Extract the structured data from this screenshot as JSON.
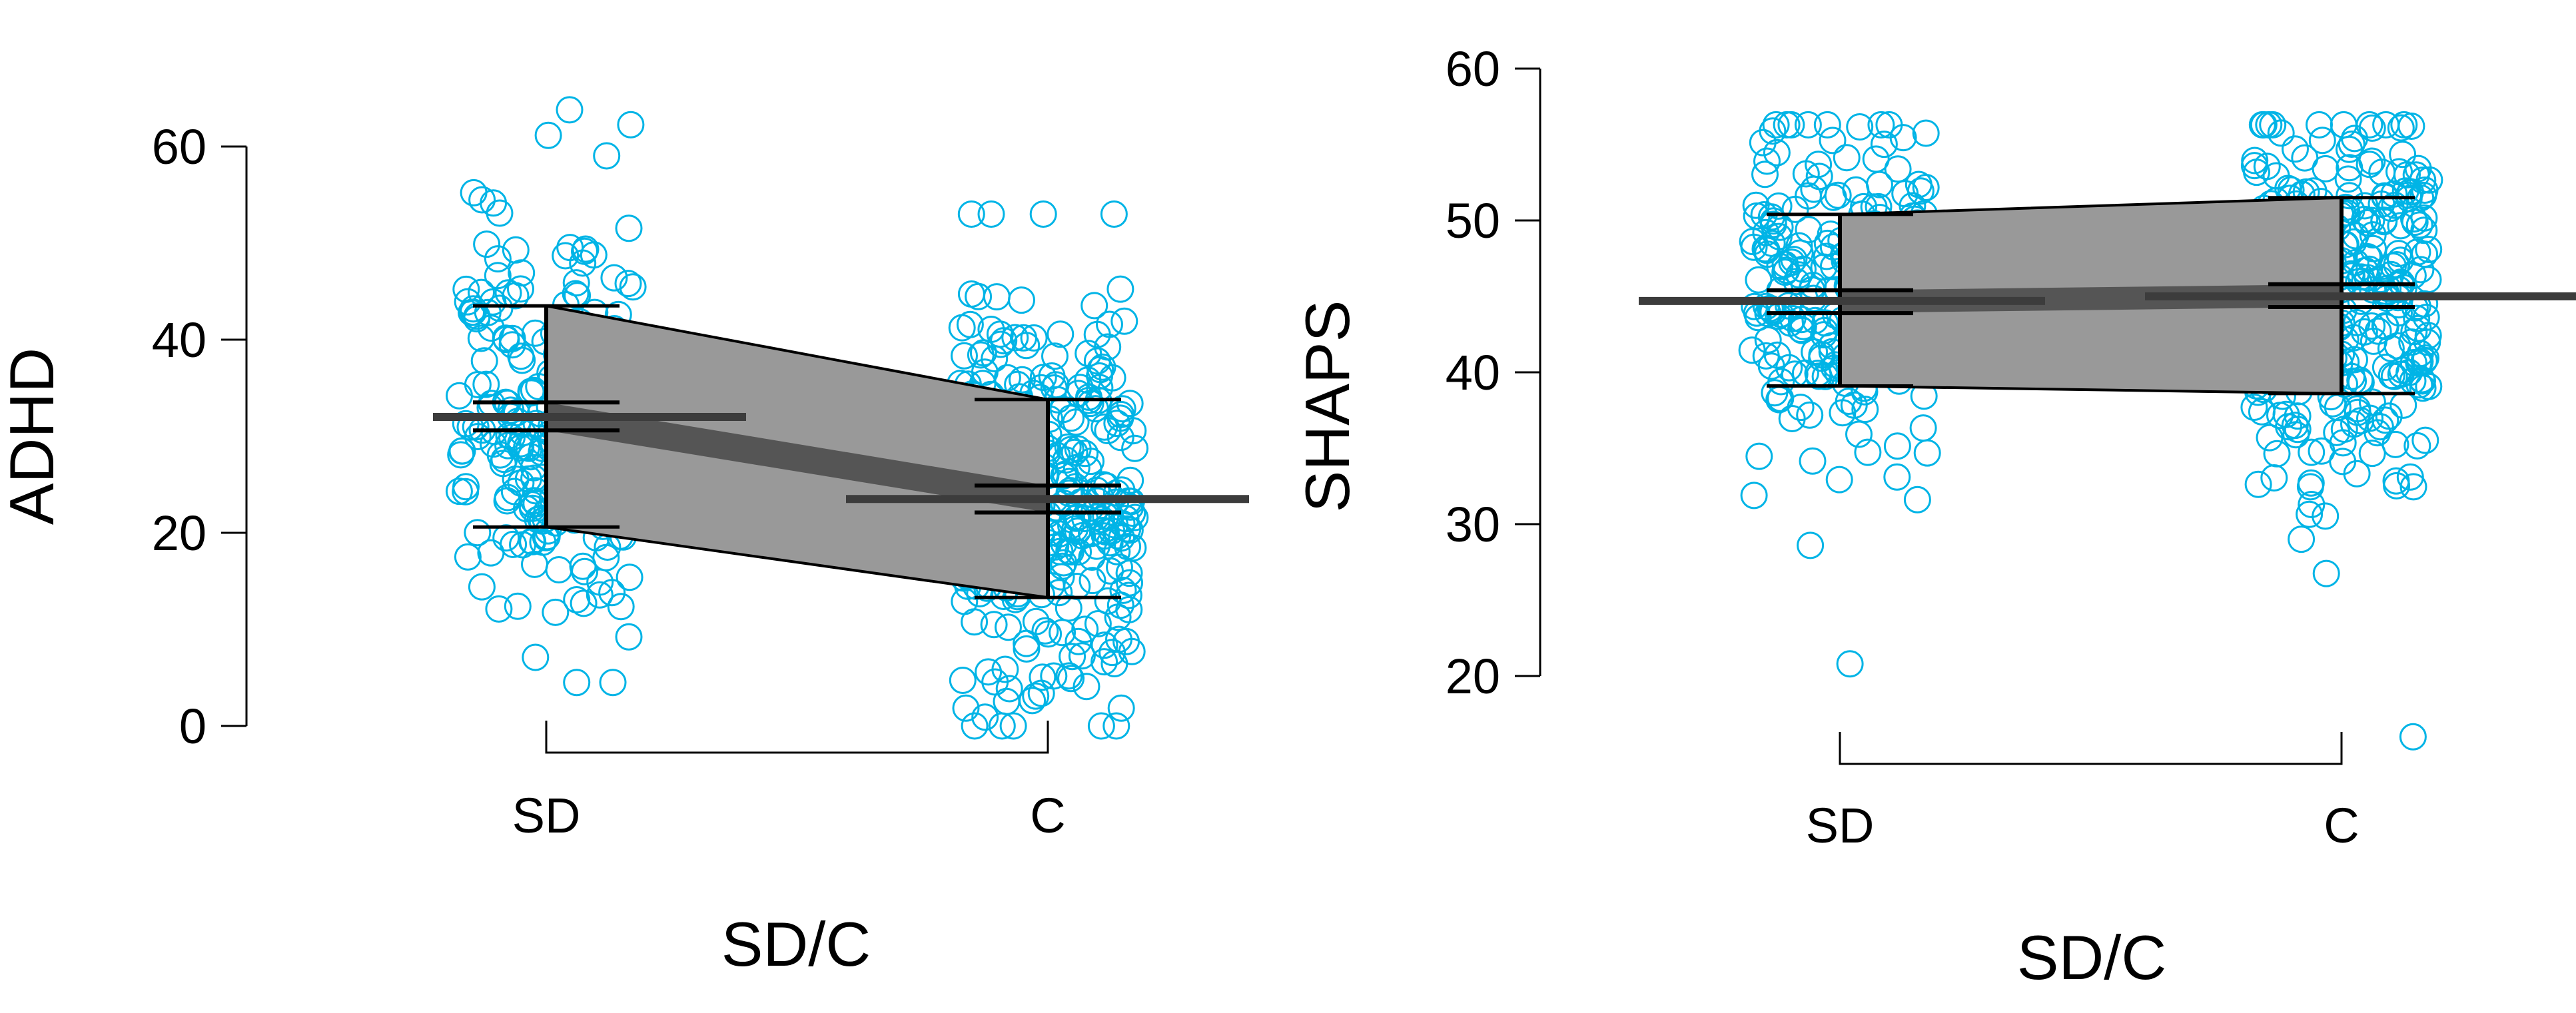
{
  "chart_data": [
    {
      "type": "scatter",
      "subtype": "jittered raincloud with group means and intervals",
      "xlabel": "SD/C",
      "ylabel": "ADHD",
      "categories": [
        "SD",
        "C"
      ],
      "ylim": [
        0,
        60
      ],
      "yticks": [
        0,
        20,
        40,
        60
      ],
      "point_color": "#00b4e6",
      "groups": [
        {
          "name": "SD",
          "mean": 32,
          "ci": [
            30.6,
            33.5
          ],
          "sd_range": [
            20.6,
            43.5
          ],
          "min": 4.5,
          "max": 63.8,
          "n": 230
        },
        {
          "name": "C",
          "mean": 23.5,
          "ci": [
            22.1,
            24.9
          ],
          "sd_range": [
            13.3,
            33.8
          ],
          "min": 0,
          "max": 53,
          "n": 330
        }
      ]
    },
    {
      "type": "scatter",
      "subtype": "jittered raincloud with group means and intervals",
      "xlabel": "SD/C",
      "ylabel": "SHAPS",
      "categories": [
        "SD",
        "C"
      ],
      "ylim": [
        20,
        60
      ],
      "yticks": [
        20,
        30,
        40,
        50,
        60
      ],
      "point_color": "#00b4e6",
      "groups": [
        {
          "name": "SD",
          "mean": 44.7,
          "ci": [
            43.9,
            45.4
          ],
          "sd_range": [
            39.1,
            50.4
          ],
          "min": 20.8,
          "max": 56.3,
          "n": 230
        },
        {
          "name": "C",
          "mean": 45,
          "ci": [
            44.3,
            45.8
          ],
          "sd_range": [
            38.6,
            51.5
          ],
          "min": 16,
          "max": 56.3,
          "n": 330
        }
      ]
    }
  ]
}
